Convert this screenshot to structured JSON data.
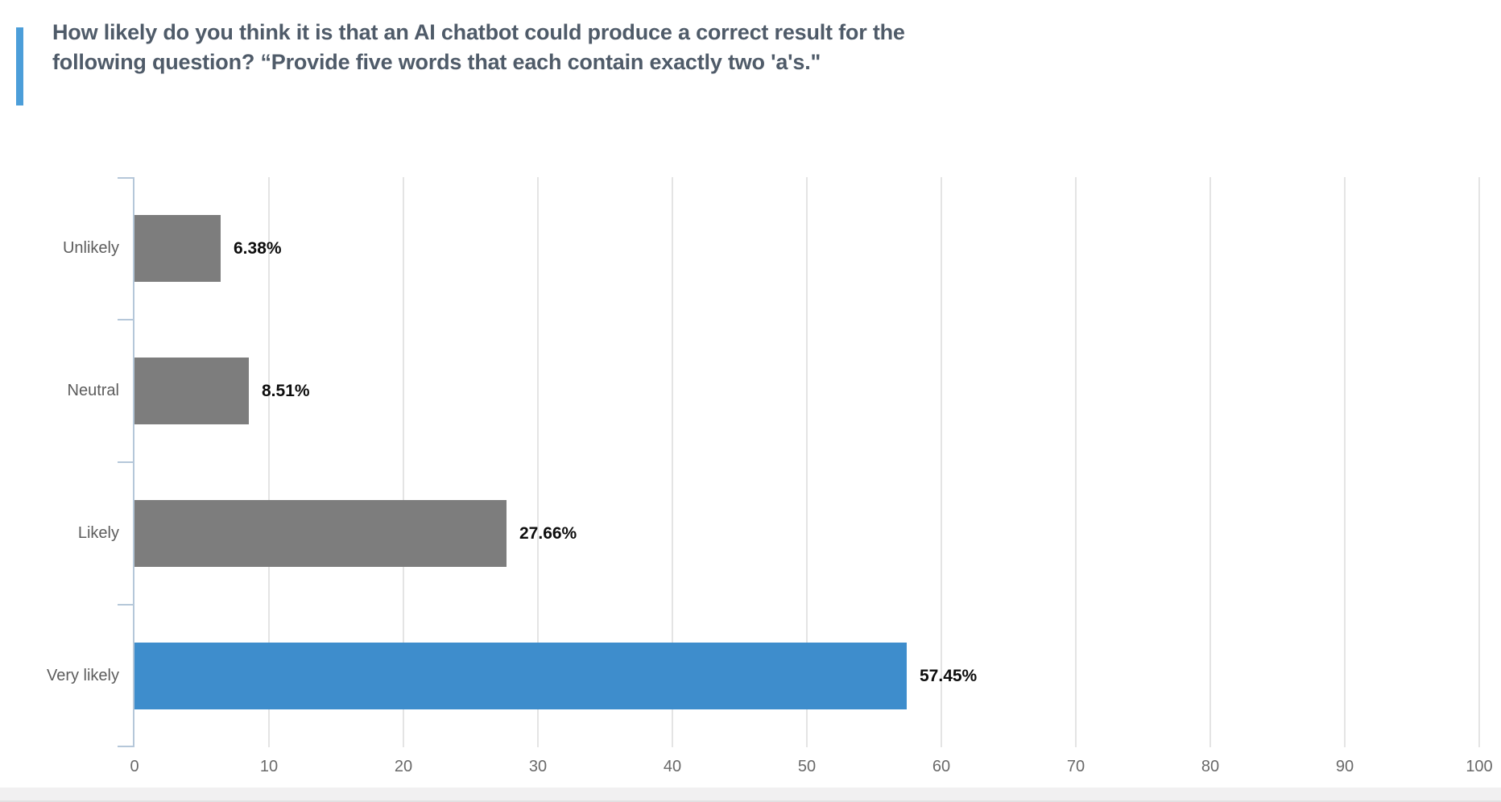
{
  "header": {
    "title": "How likely do you think it is that an AI chatbot could produce a correct result for the following question? “Provide five words that each contain exactly two 'a's.\"",
    "accent_color": "#4c9ed9"
  },
  "chart_data": {
    "type": "bar",
    "orientation": "horizontal",
    "title": "How likely do you think it is that an AI chatbot could produce a correct result for the following question? “Provide five words that each contain exactly two 'a's.\"",
    "categories": [
      "Unlikely",
      "Neutral",
      "Likely",
      "Very likely"
    ],
    "values": [
      6.38,
      8.51,
      27.66,
      57.45
    ],
    "value_labels": [
      "6.38%",
      "8.51%",
      "27.66%",
      "57.45%"
    ],
    "bar_colors": [
      "#7d7d7d",
      "#7d7d7d",
      "#7d7d7d",
      "#3e8dcc"
    ],
    "default_bar_color": "#7d7d7d",
    "highlight_color": "#3e8dcc",
    "xlabel": "",
    "ylabel": "",
    "xlim": [
      0,
      100
    ],
    "x_ticks": [
      0,
      10,
      20,
      30,
      40,
      50,
      60,
      70,
      80,
      90,
      100
    ],
    "grid": "vertical",
    "legend": "none",
    "axis_color": "#b5c7d9",
    "gridline_color": "#e4e4e4"
  }
}
